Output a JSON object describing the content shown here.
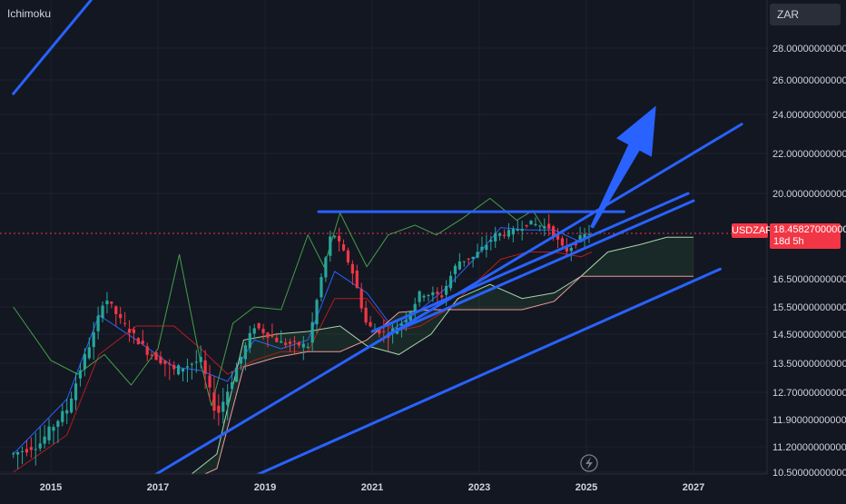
{
  "indicator": {
    "label": "Ichimoku"
  },
  "currency": {
    "label": "ZAR"
  },
  "symbol": {
    "label": "USDZAR"
  },
  "last_price": {
    "value": "18.45827000000",
    "countdown": "18d 5h"
  },
  "chart_data": {
    "type": "line",
    "title": "",
    "xlabel": "",
    "ylabel": "",
    "x_ticks": [
      "2015",
      "2017",
      "2019",
      "2021",
      "2023",
      "2025",
      "2027"
    ],
    "y_ticks": [
      {
        "label": "28.00000000000",
        "value": 28.0
      },
      {
        "label": "26.00000000000",
        "value": 26.0
      },
      {
        "label": "24.00000000000",
        "value": 24.0
      },
      {
        "label": "22.00000000000",
        "value": 22.0
      },
      {
        "label": "20.00000000000",
        "value": 20.0
      },
      {
        "label": "16.50000000000",
        "value": 16.5
      },
      {
        "label": "15.50000000000",
        "value": 15.5
      },
      {
        "label": "14.50000000000",
        "value": 14.5
      },
      {
        "label": "13.50000000000",
        "value": 13.5
      },
      {
        "label": "12.70000000000",
        "value": 12.7
      },
      {
        "label": "11.90000000000",
        "value": 11.9
      },
      {
        "label": "11.20000000000",
        "value": 11.2
      },
      {
        "label": "10.50000000000",
        "value": 10.5
      }
    ],
    "price_series": {
      "name": "",
      "x": [
        2014.3,
        2014.8,
        2015.3,
        2015.8,
        2016.0,
        2016.3,
        2016.8,
        2017.3,
        2017.8,
        2018.1,
        2018.5,
        2018.8,
        2019.3,
        2019.8,
        2020.25,
        2020.6,
        2020.9,
        2021.3,
        2021.6,
        2021.9,
        2022.3,
        2022.6,
        2022.9,
        2023.3,
        2023.6,
        2023.9,
        2024.3,
        2024.6,
        2024.9,
        2025.1
      ],
      "values": [
        11.0,
        11.3,
        12.2,
        14.5,
        15.9,
        15.0,
        13.9,
        13.3,
        13.6,
        12.0,
        13.5,
        14.8,
        14.2,
        14.1,
        18.5,
        17.0,
        14.8,
        14.5,
        15.0,
        16.0,
        15.9,
        17.2,
        17.4,
        18.3,
        18.4,
        18.8,
        18.6,
        17.6,
        18.2,
        18.458
      ]
    },
    "indicator_lines": [
      {
        "name": "",
        "color": "#2962ff",
        "x": [
          2014.3,
          2015.3,
          2015.9,
          2016.6,
          2017.3,
          2017.8,
          2018.3,
          2018.8,
          2019.3,
          2019.8,
          2020.3,
          2020.9,
          2021.4,
          2021.9,
          2022.4,
          2022.9,
          2023.4,
          2023.9,
          2024.4,
          2024.9,
          2025.1
        ],
        "values": [
          11.0,
          12.5,
          15.2,
          14.3,
          13.4,
          13.3,
          13.0,
          14.3,
          14.0,
          14.3,
          16.8,
          16.0,
          14.7,
          15.4,
          16.2,
          17.3,
          18.6,
          18.5,
          18.5,
          18.0,
          18.3
        ]
      },
      {
        "name": "",
        "color": "#b71c1c",
        "x": [
          2014.3,
          2015.3,
          2015.9,
          2016.6,
          2017.3,
          2017.8,
          2018.3,
          2018.8,
          2019.3,
          2019.8,
          2020.3,
          2020.9,
          2021.4,
          2021.9,
          2022.4,
          2022.9,
          2023.4,
          2023.9,
          2024.4,
          2024.9,
          2025.1
        ],
        "values": [
          10.5,
          11.5,
          13.8,
          14.8,
          14.8,
          14.0,
          13.2,
          13.6,
          13.9,
          13.9,
          15.8,
          15.8,
          14.6,
          14.8,
          15.4,
          16.3,
          17.3,
          17.6,
          17.6,
          17.4,
          17.6
        ]
      },
      {
        "name": "",
        "color": "#43a047",
        "x": [
          2014.3,
          2015.0,
          2015.5,
          2016.0,
          2016.5,
          2017.0,
          2017.4,
          2017.8,
          2018.0,
          2018.4,
          2018.8,
          2019.3,
          2019.8,
          2020.1,
          2020.4,
          2020.9,
          2021.3,
          2021.8,
          2022.2,
          2022.7,
          2023.2,
          2023.7,
          2024.0,
          2024.2
        ],
        "values": [
          15.5,
          13.6,
          13.2,
          13.8,
          12.9,
          14.0,
          17.5,
          13.5,
          12.3,
          14.9,
          15.5,
          15.4,
          18.3,
          17.0,
          19.2,
          17.0,
          18.3,
          18.7,
          18.3,
          19.0,
          19.8,
          18.9,
          19.3,
          18.6
        ]
      },
      {
        "name": "",
        "color": "#a5d6a7",
        "x": [
          2016.5,
          2017.5,
          2018.1,
          2018.6,
          2019.2,
          2019.8,
          2020.4,
          2020.9,
          2021.5,
          2022.1,
          2022.6,
          2023.2,
          2023.8,
          2024.4,
          2024.9,
          2025.4,
          2026.0,
          2026.5,
          2027.0
        ],
        "values": [
          10.0,
          10.3,
          11.0,
          14.3,
          14.5,
          14.6,
          14.8,
          14.1,
          13.8,
          14.5,
          15.8,
          16.3,
          15.8,
          16.0,
          16.6,
          17.6,
          17.9,
          18.2,
          18.2
        ]
      },
      {
        "name": "",
        "color": "#ef9a9a",
        "x": [
          2016.5,
          2017.5,
          2018.1,
          2018.6,
          2019.2,
          2019.8,
          2020.4,
          2020.9,
          2021.5,
          2022.1,
          2022.6,
          2023.2,
          2023.8,
          2024.4,
          2024.9,
          2025.4,
          2026.0,
          2026.5,
          2027.0
        ],
        "values": [
          10.0,
          10.2,
          10.6,
          13.4,
          13.7,
          13.9,
          13.9,
          14.3,
          15.3,
          15.4,
          15.4,
          15.4,
          15.4,
          15.7,
          16.6,
          16.6,
          16.6,
          16.6,
          16.6
        ]
      }
    ],
    "trendlines": [
      {
        "x": [
          2014.3,
          2015.75
        ],
        "values": [
          25.2,
          30.5
        ]
      },
      {
        "x": [
          2016.8,
          2027.9
        ],
        "values": [
          10.3,
          23.5
        ]
      },
      {
        "x": [
          2018.5,
          2027.5
        ],
        "values": [
          10.2,
          16.9
        ]
      },
      {
        "x": [
          2020.0,
          2025.7
        ],
        "values": [
          19.25,
          19.25
        ]
      },
      {
        "x": [
          2021.0,
          2026.9
        ],
        "values": [
          14.6,
          20.0
        ]
      },
      {
        "x": [
          2021.3,
          2027.0
        ],
        "values": [
          14.5,
          19.7
        ]
      }
    ],
    "projection_arrow": {
      "from_x": 2025.1,
      "from_y": 18.6,
      "to_x": 2026.3,
      "to_y": 24.5
    },
    "current_price": 18.45827,
    "colors": {
      "up": "#26a69a",
      "down": "#f23645",
      "trend": "#2962ff",
      "background": "#131722"
    }
  }
}
